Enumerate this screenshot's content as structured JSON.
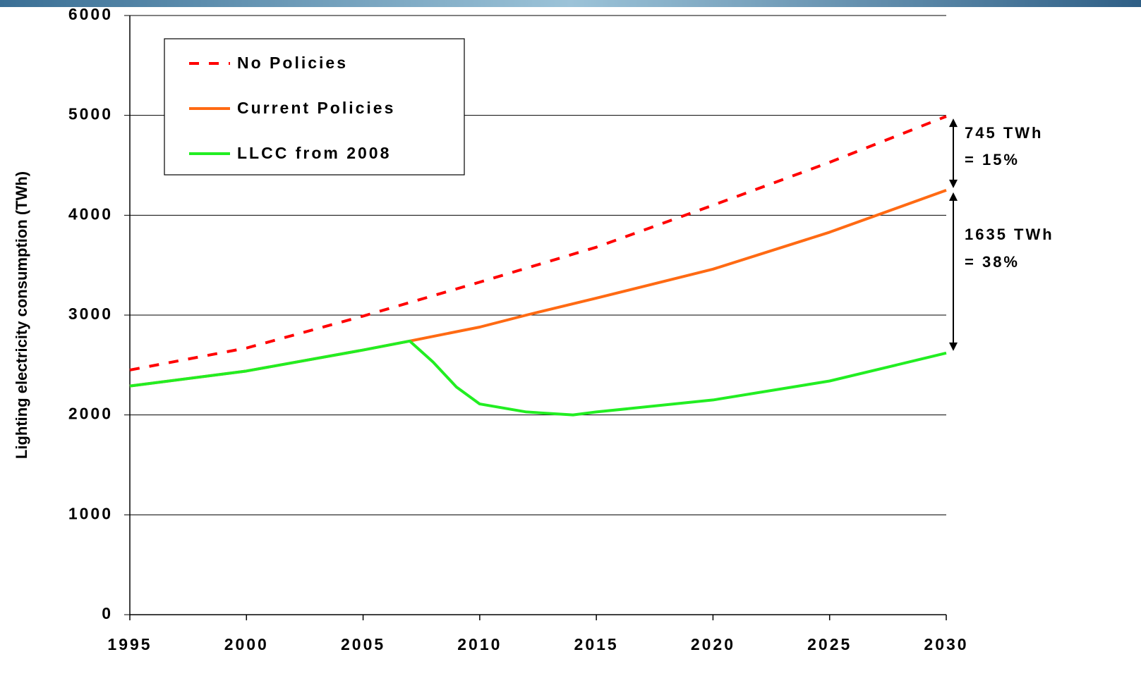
{
  "chart_data": {
    "type": "line",
    "y_label": "Lighting electricity consumption (TWh)",
    "xlim": [
      1995,
      2030
    ],
    "xticks": [
      1995,
      2000,
      2005,
      2010,
      2015,
      2020,
      2025,
      2030
    ],
    "ylim": [
      0,
      6000
    ],
    "yticks": [
      0,
      1000,
      2000,
      3000,
      4000,
      5000,
      6000
    ],
    "grid": true,
    "legend": "upper left",
    "series": [
      {
        "name": "No Policies",
        "color": "#ff0000",
        "dash": true,
        "x": [
          1995,
          2000,
          2005,
          2010,
          2015,
          2020,
          2025,
          2030
        ],
        "values": [
          2450,
          2670,
          2990,
          3330,
          3680,
          4100,
          4530,
          4990
        ]
      },
      {
        "name": "Current Policies",
        "color": "#ff6a13",
        "dash": false,
        "x": [
          1995,
          2000,
          2005,
          2007,
          2010,
          2012,
          2015,
          2020,
          2025,
          2030
        ],
        "values": [
          2290,
          2440,
          2650,
          2740,
          2880,
          3000,
          3170,
          3460,
          3830,
          4250
        ]
      },
      {
        "name": "LLCC from 2008",
        "color": "#22ee22",
        "dash": false,
        "x": [
          1995,
          2000,
          2005,
          2007,
          2008,
          2009,
          2010,
          2012,
          2014,
          2015,
          2020,
          2025,
          2030
        ],
        "values": [
          2290,
          2440,
          2650,
          2740,
          2530,
          2280,
          2110,
          2030,
          2000,
          2030,
          2150,
          2340,
          2620
        ]
      }
    ],
    "annotations": [
      "745 TWh",
      "= 15%",
      "1635 TWh",
      "= 38%"
    ]
  }
}
